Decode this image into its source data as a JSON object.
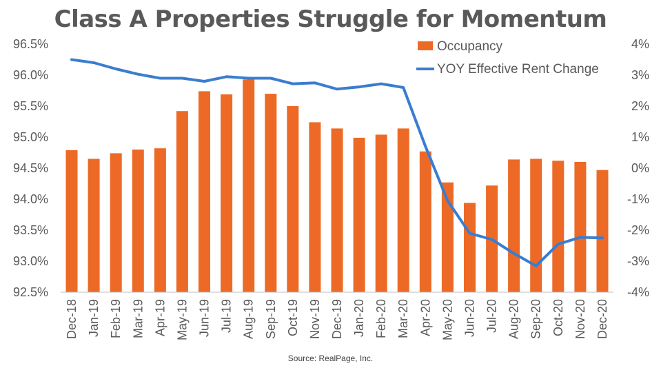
{
  "chart_data": {
    "type": "bar",
    "title": "Class A Properties Struggle for Momentum",
    "source": "Source: RealPage, Inc.",
    "categories": [
      "Dec-18",
      "Jan-19",
      "Feb-19",
      "Mar-19",
      "Apr-19",
      "May-19",
      "Jun-19",
      "Jul-19",
      "Aug-19",
      "Sep-19",
      "Oct-19",
      "Nov-19",
      "Dec-19",
      "Jan-20",
      "Feb-20",
      "Mar-20",
      "Apr-20",
      "May-20",
      "Jun-20",
      "Jul-20",
      "Aug-20",
      "Sep-20",
      "Oct-20",
      "Nov-20",
      "Dec-20"
    ],
    "series": [
      {
        "name": "Occupancy",
        "type": "bar",
        "axis": "left",
        "color": "#ED6A26",
        "values": [
          94.79,
          94.65,
          94.74,
          94.8,
          94.82,
          95.42,
          95.74,
          95.69,
          95.93,
          95.7,
          95.5,
          95.24,
          95.14,
          94.99,
          95.04,
          95.14,
          94.77,
          94.27,
          93.94,
          94.22,
          94.64,
          94.65,
          94.62,
          94.6,
          94.47
        ]
      },
      {
        "name": "YOY Effective Rent Change",
        "type": "line",
        "axis": "right",
        "color": "#3A7DD0",
        "values": [
          3.5,
          3.4,
          3.2,
          3.03,
          2.9,
          2.9,
          2.8,
          2.95,
          2.9,
          2.9,
          2.72,
          2.75,
          2.55,
          2.62,
          2.72,
          2.6,
          0.7,
          -1.05,
          -2.1,
          -2.3,
          -2.75,
          -3.15,
          -2.45,
          -2.23,
          -2.25
        ]
      }
    ],
    "y_left": {
      "ylim": [
        92.5,
        96.5
      ],
      "ticks": [
        92.5,
        93.0,
        93.5,
        94.0,
        94.5,
        95.0,
        95.5,
        96.0,
        96.5
      ],
      "tick_labels": [
        "92.5%",
        "93.0%",
        "93.5%",
        "94.0%",
        "94.5%",
        "95.0%",
        "95.5%",
        "96.0%",
        "96.5%"
      ]
    },
    "y_right": {
      "ylim": [
        -4,
        4
      ],
      "ticks": [
        -4,
        -3,
        -2,
        -1,
        0,
        1,
        2,
        3,
        4
      ],
      "tick_labels": [
        "-4%",
        "-3%",
        "-2%",
        "-1%",
        "0%",
        "1%",
        "2%",
        "3%",
        "4%"
      ]
    },
    "grid": false,
    "legend_position": "top-right"
  }
}
